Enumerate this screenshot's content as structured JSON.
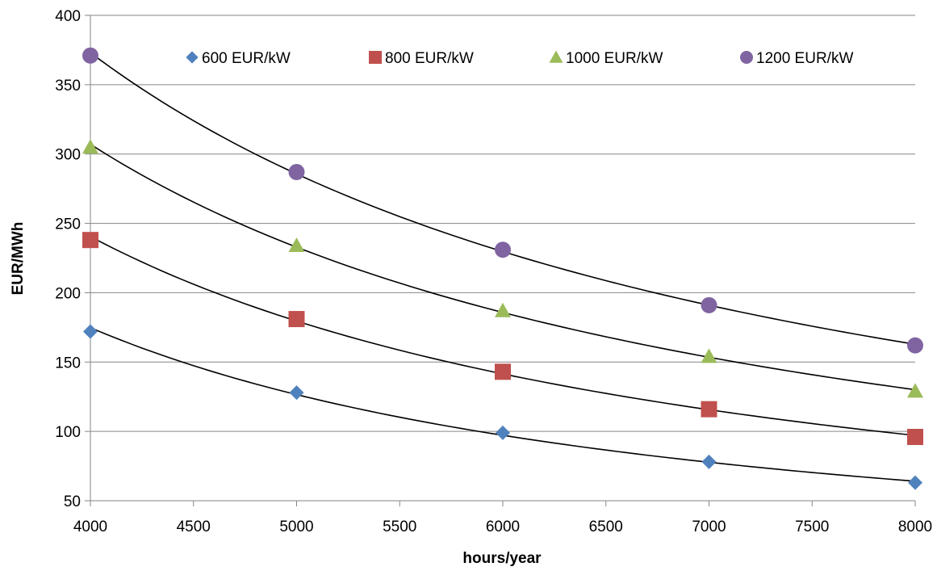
{
  "chart_data": {
    "type": "scatter",
    "title": "",
    "xlabel": "hours/year",
    "ylabel": "EUR/MWh",
    "xlim": [
      4000,
      8000
    ],
    "ylim": [
      50,
      400
    ],
    "xticks": [
      4000,
      4500,
      5000,
      5500,
      6000,
      6500,
      7000,
      7500,
      8000
    ],
    "yticks": [
      50,
      100,
      150,
      200,
      250,
      300,
      350,
      400
    ],
    "grid": "horizontal",
    "legend_position": "top",
    "trendline": "power",
    "x": [
      4000,
      5000,
      6000,
      7000,
      8000
    ],
    "series": [
      {
        "name": "600 EUR/kW",
        "values": [
          172,
          128,
          99,
          78,
          63
        ],
        "marker": "diamond",
        "color": "#4F81BD"
      },
      {
        "name": "800 EUR/kW",
        "values": [
          238,
          181,
          143,
          116,
          96
        ],
        "marker": "square",
        "color": "#C0504D"
      },
      {
        "name": "1000 EUR/kW",
        "values": [
          305,
          234,
          187,
          154,
          129
        ],
        "marker": "triangle",
        "color": "#9BBB59"
      },
      {
        "name": "1200 EUR/kW",
        "values": [
          371,
          287,
          231,
          191,
          162
        ],
        "marker": "circle",
        "color": "#8064A2"
      }
    ]
  }
}
